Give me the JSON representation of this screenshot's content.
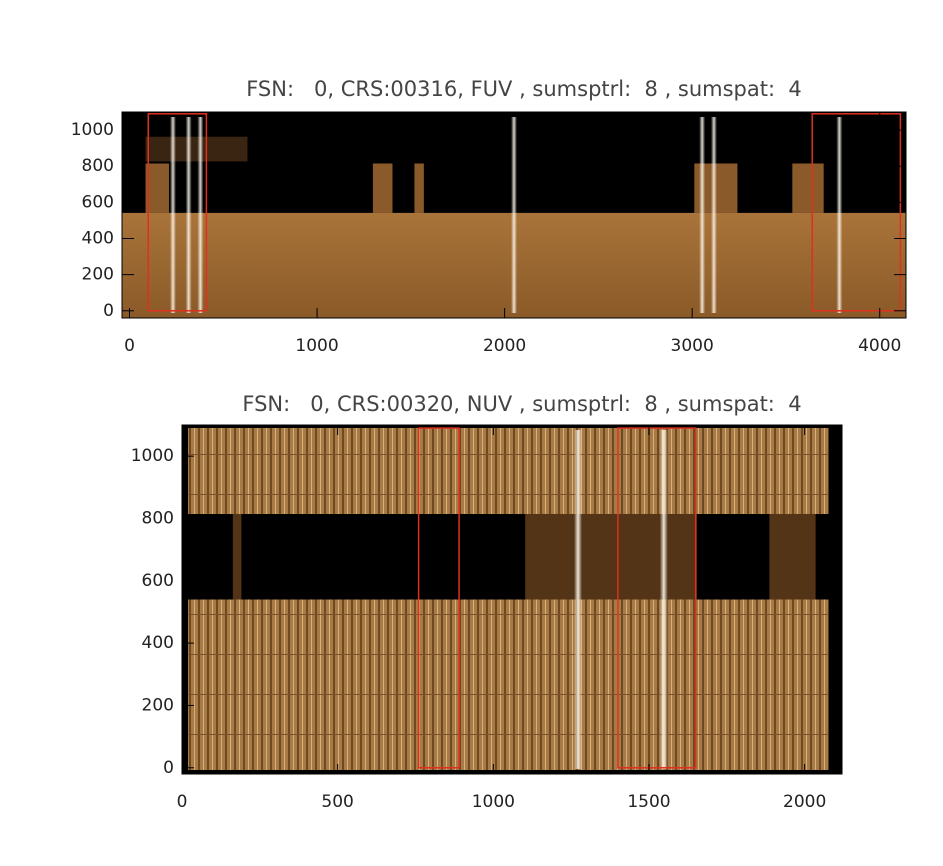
{
  "chart_data": [
    {
      "type": "image",
      "title": "FSN:   0, CRS:00316, FUV , sumsptrl:  8 , sumspat:  4",
      "xlim": [
        -40,
        4140
      ],
      "ylim": [
        -40,
        1100
      ],
      "xticks": [
        0,
        1000,
        2000,
        3000,
        4000
      ],
      "yticks": [
        0,
        200,
        400,
        600,
        800,
        1000
      ],
      "boxes": [
        {
          "x": [
            100,
            410
          ],
          "y": [
            0,
            1090
          ]
        },
        {
          "x": [
            3640,
            4110
          ],
          "y": [
            0,
            1090
          ]
        }
      ],
      "box_color": "#e0301e"
    },
    {
      "type": "image",
      "title": "FSN:   0, CRS:00320, NUV , sumsptrl:  8 , sumspat:  4",
      "xlim": [
        0,
        2120
      ],
      "ylim": [
        -20,
        1100
      ],
      "xticks": [
        0,
        500,
        1000,
        1500,
        2000
      ],
      "yticks": [
        0,
        200,
        400,
        600,
        800,
        1000
      ],
      "boxes": [
        {
          "x": [
            760,
            890
          ],
          "y": [
            0,
            1090
          ]
        },
        {
          "x": [
            1400,
            1650
          ],
          "y": [
            0,
            1090
          ]
        }
      ],
      "box_color": "#e0301e"
    }
  ]
}
